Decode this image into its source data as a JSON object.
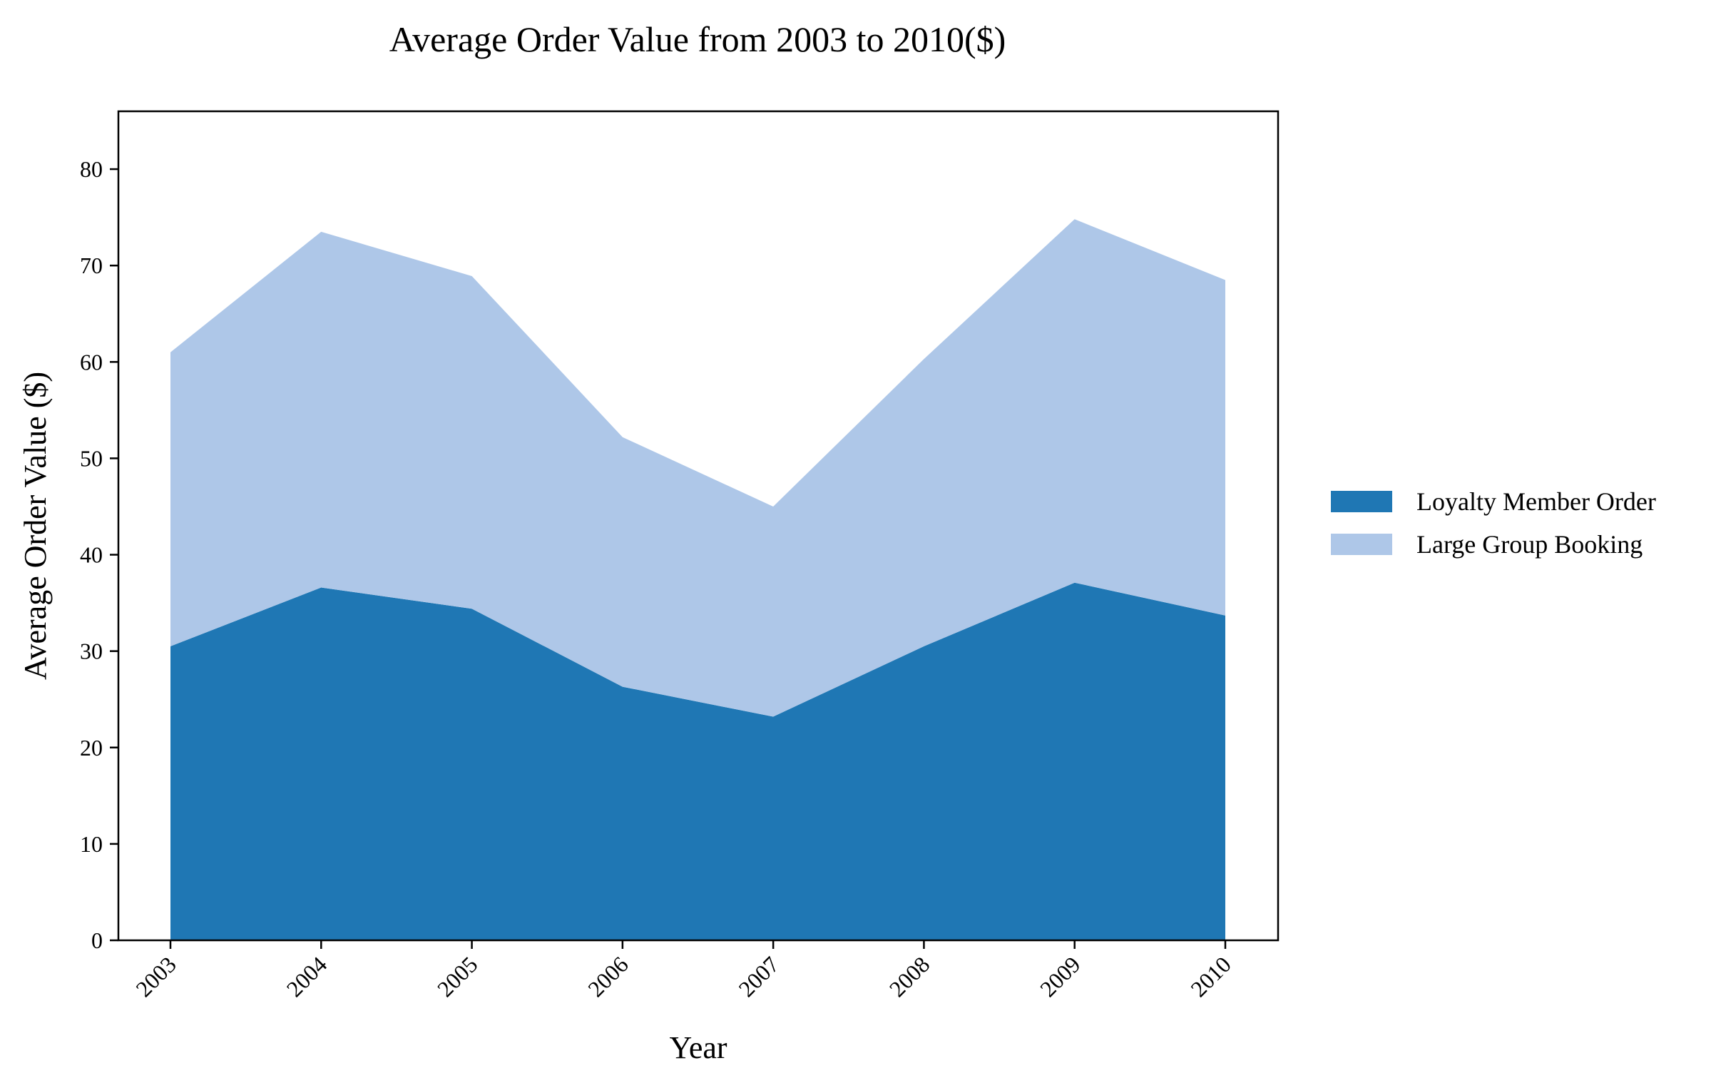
{
  "chart_data": {
    "type": "area",
    "stacked": true,
    "title": "Average Order Value from 2003 to 2010($)",
    "xlabel": "Year",
    "ylabel": "Average Order Value ($)",
    "categories": [
      "2003",
      "2004",
      "2005",
      "2006",
      "2007",
      "2008",
      "2009",
      "2010"
    ],
    "ylim": [
      0,
      86
    ],
    "yticks": [
      0,
      10,
      20,
      30,
      40,
      50,
      60,
      70,
      80
    ],
    "grid": false,
    "legend_position": "right",
    "series": [
      {
        "name": "Loyalty Member Order",
        "color": "#1f77b4",
        "values": [
          30.5,
          36.6,
          34.4,
          26.3,
          23.2,
          30.5,
          37.1,
          33.7
        ]
      },
      {
        "name": "Large Group Booking",
        "color": "#aec7e8",
        "values": [
          30.5,
          36.9,
          34.5,
          25.9,
          21.8,
          29.8,
          37.7,
          34.8
        ]
      }
    ]
  }
}
